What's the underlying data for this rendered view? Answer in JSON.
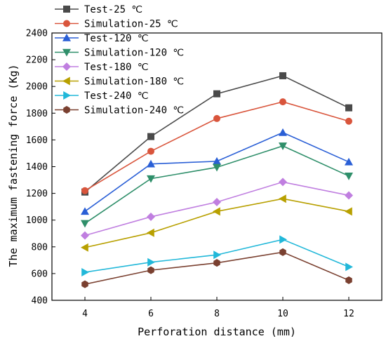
{
  "chart_data": {
    "type": "line",
    "xlabel": "Perforation distance (mm)",
    "ylabel": "The maximum fastening force (Kg)",
    "x": [
      4,
      6,
      8,
      10,
      12
    ],
    "xlim": [
      3,
      13
    ],
    "ylim": [
      400,
      2400
    ],
    "xticks": [
      4,
      6,
      8,
      10,
      12
    ],
    "yticks": [
      400,
      600,
      800,
      1000,
      1200,
      1400,
      1600,
      1800,
      2000,
      2200,
      2400
    ],
    "grid": false,
    "legend_position": "top-left",
    "series": [
      {
        "name": "Test-25 ℃",
        "color": "#4a4a4a",
        "marker": "square",
        "values": [
          1210,
          1625,
          1945,
          2080,
          1840
        ]
      },
      {
        "name": "Simulation-25 ℃",
        "color": "#d9553c",
        "marker": "circle",
        "values": [
          1220,
          1515,
          1760,
          1885,
          1740
        ]
      },
      {
        "name": "Test-120 ℃",
        "color": "#2a5fd6",
        "marker": "triangle-up",
        "values": [
          1065,
          1420,
          1440,
          1655,
          1435
        ]
      },
      {
        "name": "Simulation-120 ℃",
        "color": "#2f8f6a",
        "marker": "triangle-down",
        "values": [
          975,
          1310,
          1395,
          1555,
          1330
        ]
      },
      {
        "name": "Test-180 ℃",
        "color": "#c07fe0",
        "marker": "diamond",
        "values": [
          885,
          1025,
          1135,
          1285,
          1185
        ]
      },
      {
        "name": "Simulation-180 ℃",
        "color": "#b8a000",
        "marker": "triangle-left",
        "values": [
          795,
          905,
          1065,
          1160,
          1065
        ]
      },
      {
        "name": "Test-240 ℃",
        "color": "#22b8d9",
        "marker": "triangle-right",
        "values": [
          610,
          685,
          740,
          855,
          650
        ]
      },
      {
        "name": "Simulation-240 ℃",
        "color": "#7a4030",
        "marker": "hexagon",
        "values": [
          520,
          625,
          680,
          760,
          550
        ]
      }
    ]
  }
}
